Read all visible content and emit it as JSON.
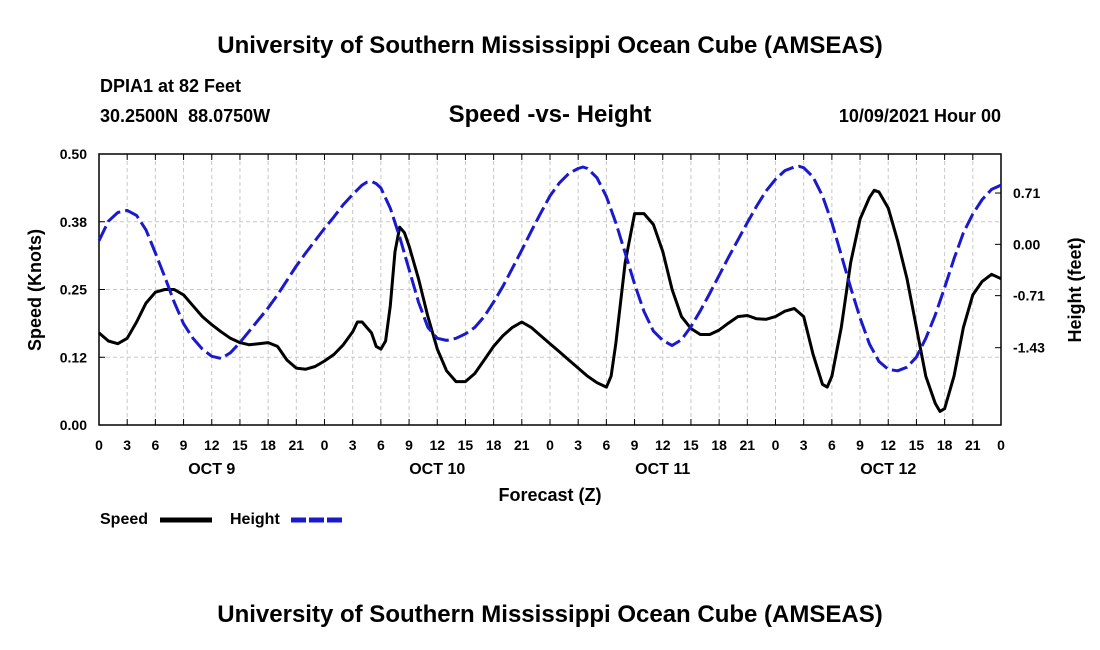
{
  "header": {
    "title": "University of Southern Mississippi Ocean Cube (AMSEAS)",
    "station": "DPIA1 at 82 Feet",
    "lat": "30.2500N",
    "lon": "88.0750W",
    "subtitle": "Speed -vs- Height",
    "datetime": "10/09/2021 Hour 00"
  },
  "footer": {
    "title": "University of Southern Mississippi Ocean Cube (AMSEAS)"
  },
  "legend": {
    "speed_label": "Speed",
    "height_label": "Height"
  },
  "colors": {
    "speed": "#000000",
    "height": "#1a1acc",
    "grid": "#c8c8c8"
  },
  "chart_data": {
    "type": "line",
    "xlabel": "Forecast (Z)",
    "ylabel_left": "Speed (Knots)",
    "ylabel_right": "Height (feet)",
    "x_range_hours": [
      0,
      96
    ],
    "x_tick_step_hours": 3,
    "x_tick_labels": [
      "0",
      "3",
      "6",
      "9",
      "12",
      "15",
      "18",
      "21",
      "0",
      "3",
      "6",
      "9",
      "12",
      "15",
      "18",
      "21",
      "0",
      "3",
      "6",
      "9",
      "12",
      "15",
      "18",
      "21",
      "0",
      "3",
      "6",
      "9",
      "12",
      "15",
      "18",
      "21",
      "0"
    ],
    "day_labels": [
      {
        "hour": 12,
        "label": "OCT 9"
      },
      {
        "hour": 36,
        "label": "OCT 10"
      },
      {
        "hour": 60,
        "label": "OCT 11"
      },
      {
        "hour": 84,
        "label": "OCT 12"
      }
    ],
    "y_left": {
      "range": [
        0,
        0.5
      ],
      "ticks": [
        "0.00",
        "0.12",
        "0.25",
        "0.38",
        "0.50"
      ],
      "tick_values": [
        0,
        0.125,
        0.25,
        0.375,
        0.5
      ]
    },
    "y_right": {
      "range": [
        -2.5,
        1.25
      ],
      "ticks": [
        "0.71",
        "0.00",
        "-0.71",
        "-1.43"
      ],
      "tick_values": [
        0.71,
        0.0,
        -0.71,
        -1.43
      ]
    },
    "grid": true,
    "series": [
      {
        "name": "Speed",
        "axis": "left",
        "style": "solid",
        "points": [
          [
            0,
            0.17
          ],
          [
            1,
            0.155
          ],
          [
            2,
            0.15
          ],
          [
            3,
            0.16
          ],
          [
            4,
            0.19
          ],
          [
            5,
            0.225
          ],
          [
            6,
            0.245
          ],
          [
            7,
            0.25
          ],
          [
            8,
            0.25
          ],
          [
            9,
            0.24
          ],
          [
            10,
            0.22
          ],
          [
            11,
            0.2
          ],
          [
            12,
            0.185
          ],
          [
            13,
            0.172
          ],
          [
            14,
            0.16
          ],
          [
            15,
            0.152
          ],
          [
            16,
            0.148
          ],
          [
            17,
            0.15
          ],
          [
            18,
            0.152
          ],
          [
            19,
            0.145
          ],
          [
            20,
            0.12
          ],
          [
            21,
            0.105
          ],
          [
            22,
            0.103
          ],
          [
            23,
            0.108
          ],
          [
            24,
            0.118
          ],
          [
            25,
            0.13
          ],
          [
            26,
            0.148
          ],
          [
            27,
            0.172
          ],
          [
            27.5,
            0.19
          ],
          [
            28,
            0.19
          ],
          [
            29,
            0.17
          ],
          [
            29.5,
            0.145
          ],
          [
            30,
            0.14
          ],
          [
            30.5,
            0.155
          ],
          [
            31,
            0.22
          ],
          [
            31.5,
            0.32
          ],
          [
            32,
            0.365
          ],
          [
            32.5,
            0.355
          ],
          [
            33,
            0.33
          ],
          [
            34,
            0.27
          ],
          [
            35,
            0.2
          ],
          [
            36,
            0.14
          ],
          [
            37,
            0.1
          ],
          [
            38,
            0.08
          ],
          [
            39,
            0.08
          ],
          [
            40,
            0.095
          ],
          [
            41,
            0.12
          ],
          [
            42,
            0.145
          ],
          [
            43,
            0.165
          ],
          [
            44,
            0.18
          ],
          [
            45,
            0.19
          ],
          [
            46,
            0.18
          ],
          [
            47,
            0.165
          ],
          [
            48,
            0.15
          ],
          [
            49,
            0.135
          ],
          [
            50,
            0.12
          ],
          [
            51,
            0.105
          ],
          [
            52,
            0.09
          ],
          [
            53,
            0.078
          ],
          [
            54,
            0.07
          ],
          [
            54.5,
            0.09
          ],
          [
            55,
            0.15
          ],
          [
            56,
            0.3
          ],
          [
            57,
            0.39
          ],
          [
            58,
            0.39
          ],
          [
            59,
            0.37
          ],
          [
            60,
            0.32
          ],
          [
            61,
            0.25
          ],
          [
            62,
            0.2
          ],
          [
            63,
            0.178
          ],
          [
            64,
            0.167
          ],
          [
            65,
            0.167
          ],
          [
            66,
            0.175
          ],
          [
            67,
            0.188
          ],
          [
            68,
            0.2
          ],
          [
            69,
            0.202
          ],
          [
            70,
            0.196
          ],
          [
            71,
            0.195
          ],
          [
            72,
            0.2
          ],
          [
            73,
            0.21
          ],
          [
            74,
            0.215
          ],
          [
            75,
            0.2
          ],
          [
            76,
            0.13
          ],
          [
            77,
            0.075
          ],
          [
            77.5,
            0.07
          ],
          [
            78,
            0.09
          ],
          [
            79,
            0.18
          ],
          [
            80,
            0.3
          ],
          [
            81,
            0.38
          ],
          [
            82,
            0.42
          ],
          [
            82.5,
            0.433
          ],
          [
            83,
            0.43
          ],
          [
            84,
            0.4
          ],
          [
            85,
            0.34
          ],
          [
            86,
            0.27
          ],
          [
            87,
            0.18
          ],
          [
            88,
            0.09
          ],
          [
            89,
            0.04
          ],
          [
            89.5,
            0.025
          ],
          [
            90,
            0.03
          ],
          [
            91,
            0.09
          ],
          [
            92,
            0.18
          ],
          [
            93,
            0.24
          ],
          [
            94,
            0.265
          ],
          [
            95,
            0.278
          ],
          [
            96,
            0.27
          ]
        ]
      },
      {
        "name": "Height",
        "axis": "right",
        "style": "dashed",
        "points": [
          [
            0,
            0.05
          ],
          [
            1,
            0.32
          ],
          [
            2,
            0.44
          ],
          [
            3,
            0.47
          ],
          [
            4,
            0.4
          ],
          [
            5,
            0.2
          ],
          [
            6,
            -0.12
          ],
          [
            7,
            -0.45
          ],
          [
            8,
            -0.8
          ],
          [
            9,
            -1.1
          ],
          [
            10,
            -1.3
          ],
          [
            11,
            -1.45
          ],
          [
            12,
            -1.55
          ],
          [
            13,
            -1.58
          ],
          [
            14,
            -1.5
          ],
          [
            15,
            -1.36
          ],
          [
            16,
            -1.2
          ],
          [
            17,
            -1.04
          ],
          [
            18,
            -0.88
          ],
          [
            19,
            -0.7
          ],
          [
            20,
            -0.5
          ],
          [
            21,
            -0.3
          ],
          [
            22,
            -0.12
          ],
          [
            23,
            0.05
          ],
          [
            24,
            0.22
          ],
          [
            25,
            0.38
          ],
          [
            26,
            0.55
          ],
          [
            27,
            0.69
          ],
          [
            28,
            0.82
          ],
          [
            28.5,
            0.86
          ],
          [
            29,
            0.87
          ],
          [
            29.5,
            0.84
          ],
          [
            30,
            0.78
          ],
          [
            31,
            0.5
          ],
          [
            32,
            0.1
          ],
          [
            33,
            -0.35
          ],
          [
            34,
            -0.8
          ],
          [
            35,
            -1.15
          ],
          [
            36,
            -1.3
          ],
          [
            37,
            -1.33
          ],
          [
            38,
            -1.3
          ],
          [
            39,
            -1.24
          ],
          [
            40,
            -1.15
          ],
          [
            41,
            -1.0
          ],
          [
            42,
            -0.8
          ],
          [
            43,
            -0.58
          ],
          [
            44,
            -0.33
          ],
          [
            45,
            -0.08
          ],
          [
            46,
            0.18
          ],
          [
            47,
            0.43
          ],
          [
            48,
            0.67
          ],
          [
            49,
            0.85
          ],
          [
            50,
            0.98
          ],
          [
            51,
            1.05
          ],
          [
            51.5,
            1.07
          ],
          [
            52,
            1.05
          ],
          [
            53,
            0.92
          ],
          [
            54,
            0.66
          ],
          [
            55,
            0.3
          ],
          [
            56,
            -0.12
          ],
          [
            57,
            -0.55
          ],
          [
            58,
            -0.93
          ],
          [
            59,
            -1.2
          ],
          [
            60,
            -1.33
          ],
          [
            61,
            -1.4
          ],
          [
            62,
            -1.32
          ],
          [
            63,
            -1.14
          ],
          [
            64,
            -0.92
          ],
          [
            65,
            -0.68
          ],
          [
            66,
            -0.43
          ],
          [
            67,
            -0.18
          ],
          [
            68,
            0.06
          ],
          [
            69,
            0.3
          ],
          [
            70,
            0.53
          ],
          [
            71,
            0.74
          ],
          [
            72,
            0.9
          ],
          [
            73,
            1.02
          ],
          [
            74,
            1.07
          ],
          [
            74.5,
            1.08
          ],
          [
            75,
            1.06
          ],
          [
            76,
            0.93
          ],
          [
            77,
            0.67
          ],
          [
            78,
            0.3
          ],
          [
            79,
            -0.15
          ],
          [
            80,
            -0.6
          ],
          [
            81,
            -1.02
          ],
          [
            82,
            -1.38
          ],
          [
            83,
            -1.62
          ],
          [
            84,
            -1.73
          ],
          [
            85,
            -1.75
          ],
          [
            86,
            -1.7
          ],
          [
            87,
            -1.56
          ],
          [
            88,
            -1.3
          ],
          [
            89,
            -0.98
          ],
          [
            90,
            -0.6
          ],
          [
            91,
            -0.2
          ],
          [
            92,
            0.16
          ],
          [
            93,
            0.42
          ],
          [
            94,
            0.62
          ],
          [
            95,
            0.76
          ],
          [
            96,
            0.82
          ]
        ]
      }
    ]
  }
}
